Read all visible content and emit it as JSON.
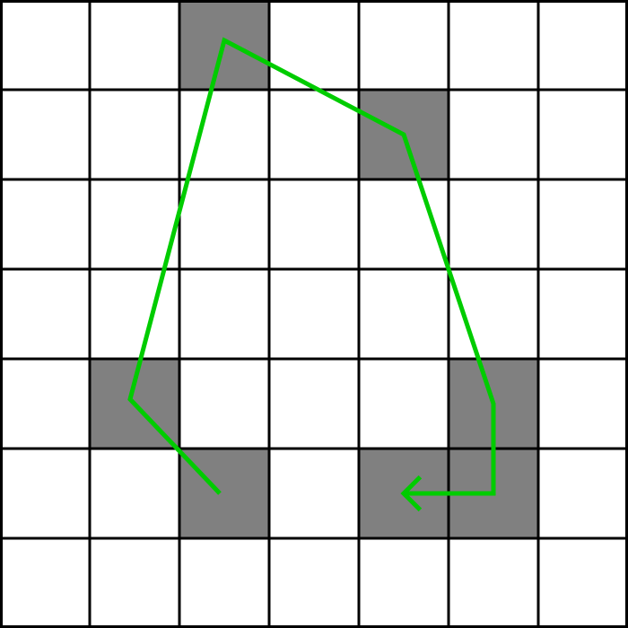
{
  "grid": {
    "rows": 7,
    "cols": 7,
    "cell_fill": "#ffffff",
    "shaded_fill": "#808080",
    "line_color": "#000000",
    "shaded_cells": [
      {
        "row": 0,
        "col": 2
      },
      {
        "row": 1,
        "col": 4
      },
      {
        "row": 4,
        "col": 1
      },
      {
        "row": 4,
        "col": 5
      },
      {
        "row": 5,
        "col": 2
      },
      {
        "row": 5,
        "col": 4
      },
      {
        "row": 5,
        "col": 5
      }
    ]
  },
  "path": {
    "color": "#00cc00",
    "end_marker": "arrowhead-left",
    "points": [
      {
        "row": 5.5,
        "col": 2.45
      },
      {
        "row": 4.45,
        "col": 1.45
      },
      {
        "row": 0.45,
        "col": 2.5
      },
      {
        "row": 1.5,
        "col": 4.5
      },
      {
        "row": 4.5,
        "col": 5.5
      },
      {
        "row": 5.5,
        "col": 5.5
      },
      {
        "row": 5.5,
        "col": 4.5
      }
    ]
  }
}
